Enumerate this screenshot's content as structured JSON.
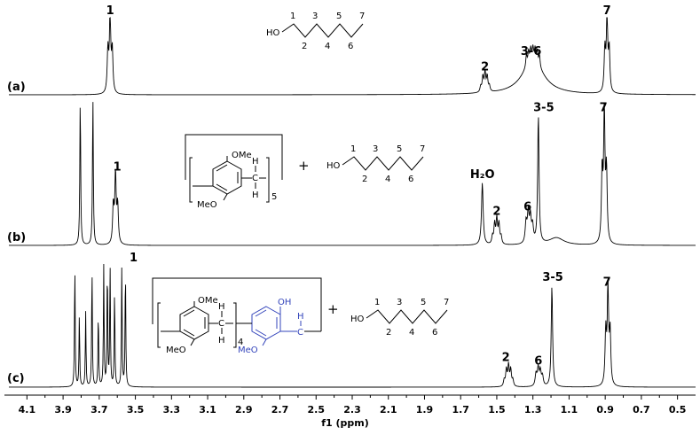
{
  "chart_data": {
    "type": "line",
    "title": "",
    "xlabel": "f1 (ppm)",
    "ylabel": "",
    "x_axis": {
      "reversed": true,
      "xlim": [
        4.2,
        0.4
      ],
      "ticks": [
        "4.1",
        "3.9",
        "3.7",
        "3.5",
        "3.3",
        "3.1",
        "2.9",
        "2.7",
        "2.5",
        "2.3",
        "2.1",
        "1.9",
        "1.7",
        "1.5",
        "1.3",
        "1.1",
        "0.9",
        "0.7",
        "0.5"
      ]
    },
    "grid": false,
    "legend": "none",
    "series": [
      {
        "name": "(a)",
        "peaks": [
          {
            "x": 3.64,
            "multiplicity": "triplet",
            "height": 1.0,
            "width": 0.01
          },
          {
            "x": 1.565,
            "multiplicity": "quintet",
            "height": 0.25,
            "width": 0.01
          },
          {
            "x": 1.3,
            "multiplicity": "broad",
            "height": 0.45,
            "width": 0.07
          },
          {
            "x": 0.89,
            "multiplicity": "triplet",
            "height": 1.0,
            "width": 0.01
          }
        ],
        "annotations": [
          {
            "text": "1",
            "x": 3.64
          },
          {
            "text": "2",
            "x": 1.565
          },
          {
            "text": "3-6",
            "x": 1.31
          },
          {
            "text": "7",
            "x": 0.89
          }
        ]
      },
      {
        "name": "(b)",
        "peaks": [
          {
            "x": 3.805,
            "multiplicity": "singlet",
            "height": 1.0,
            "width": 0.006
          },
          {
            "x": 3.735,
            "multiplicity": "singlet",
            "height": 1.0,
            "width": 0.006
          },
          {
            "x": 3.61,
            "multiplicity": "triplet",
            "height": 0.47,
            "width": 0.01
          },
          {
            "x": 1.58,
            "multiplicity": "singlet",
            "height": 0.42,
            "width": 0.012
          },
          {
            "x": 1.5,
            "multiplicity": "quintet",
            "height": 0.17,
            "width": 0.01
          },
          {
            "x": 1.32,
            "multiplicity": "multiplet",
            "height": 0.2,
            "width": 0.012
          },
          {
            "x": 1.27,
            "multiplicity": "singlet",
            "height": 0.87,
            "width": 0.01
          },
          {
            "x": 1.17,
            "multiplicity": "broad",
            "height": 0.05,
            "width": 0.05
          },
          {
            "x": 0.905,
            "multiplicity": "triplet",
            "height": 0.87,
            "width": 0.01
          }
        ],
        "annotations": [
          {
            "text": "1",
            "x": 3.6
          },
          {
            "text": "H₂O",
            "x": 1.58
          },
          {
            "text": "2",
            "x": 1.5
          },
          {
            "text": "6",
            "x": 1.33
          },
          {
            "text": "3-5",
            "x": 1.24
          },
          {
            "text": "7",
            "x": 0.91
          }
        ]
      },
      {
        "name": "(c)",
        "peaks": [
          {
            "x": 3.835,
            "multiplicity": "singlet",
            "height": 1.0,
            "width": 0.005
          },
          {
            "x": 3.81,
            "multiplicity": "singlet",
            "height": 0.58,
            "width": 0.005
          },
          {
            "x": 3.775,
            "multiplicity": "singlet",
            "height": 0.61,
            "width": 0.005
          },
          {
            "x": 3.74,
            "multiplicity": "singlet",
            "height": 0.98,
            "width": 0.005
          },
          {
            "x": 3.705,
            "multiplicity": "singlet",
            "height": 0.61,
            "width": 0.005
          },
          {
            "x": 3.675,
            "multiplicity": "singlet",
            "height": 0.98,
            "width": 0.005
          },
          {
            "x": 3.655,
            "multiplicity": "singlet",
            "height": 0.98,
            "width": 0.005
          },
          {
            "x": 3.64,
            "multiplicity": "singlet",
            "height": 0.98,
            "width": 0.005
          },
          {
            "x": 3.615,
            "multiplicity": "singlet",
            "height": 0.79,
            "width": 0.005
          },
          {
            "x": 3.575,
            "multiplicity": "singlet",
            "height": 0.98,
            "width": 0.005
          },
          {
            "x": 3.555,
            "multiplicity": "singlet",
            "height": 0.98,
            "width": 0.005
          },
          {
            "x": 1.435,
            "multiplicity": "quintet",
            "height": 0.17,
            "width": 0.01
          },
          {
            "x": 1.265,
            "multiplicity": "multiplet",
            "height": 0.14,
            "width": 0.012
          },
          {
            "x": 1.195,
            "multiplicity": "singlet",
            "height": 0.82,
            "width": 0.01
          },
          {
            "x": 0.885,
            "multiplicity": "triplet",
            "height": 0.78,
            "width": 0.01
          }
        ],
        "annotations": [
          {
            "text": "1",
            "x": 3.51
          },
          {
            "text": "2",
            "x": 1.45
          },
          {
            "text": "6",
            "x": 1.27
          },
          {
            "text": "3-5",
            "x": 1.19
          },
          {
            "text": "7",
            "x": 0.89
          }
        ]
      }
    ]
  },
  "structures": {
    "octanol": {
      "atom_label": "HO",
      "numbers": [
        "1",
        "2",
        "3",
        "4",
        "5",
        "6",
        "7"
      ]
    },
    "pillararene_b": {
      "methoxy_top": "OMe",
      "methoxy_bottom": "MeO",
      "h_top": "H",
      "h_bottom": "H",
      "carbon": "C",
      "subscript": "5"
    },
    "pillararene_c": {
      "methoxy_top": "OMe",
      "methoxy_bottom": "MeO",
      "h_top": "H",
      "h_bottom": "H",
      "carbon": "C",
      "subscript": "4",
      "hydroxy": "OH",
      "methoxy_blue": "MeO",
      "h_blue": "H",
      "carbon_blue": "C"
    },
    "plus_sign": "+",
    "accent_color": "#3344bb"
  }
}
